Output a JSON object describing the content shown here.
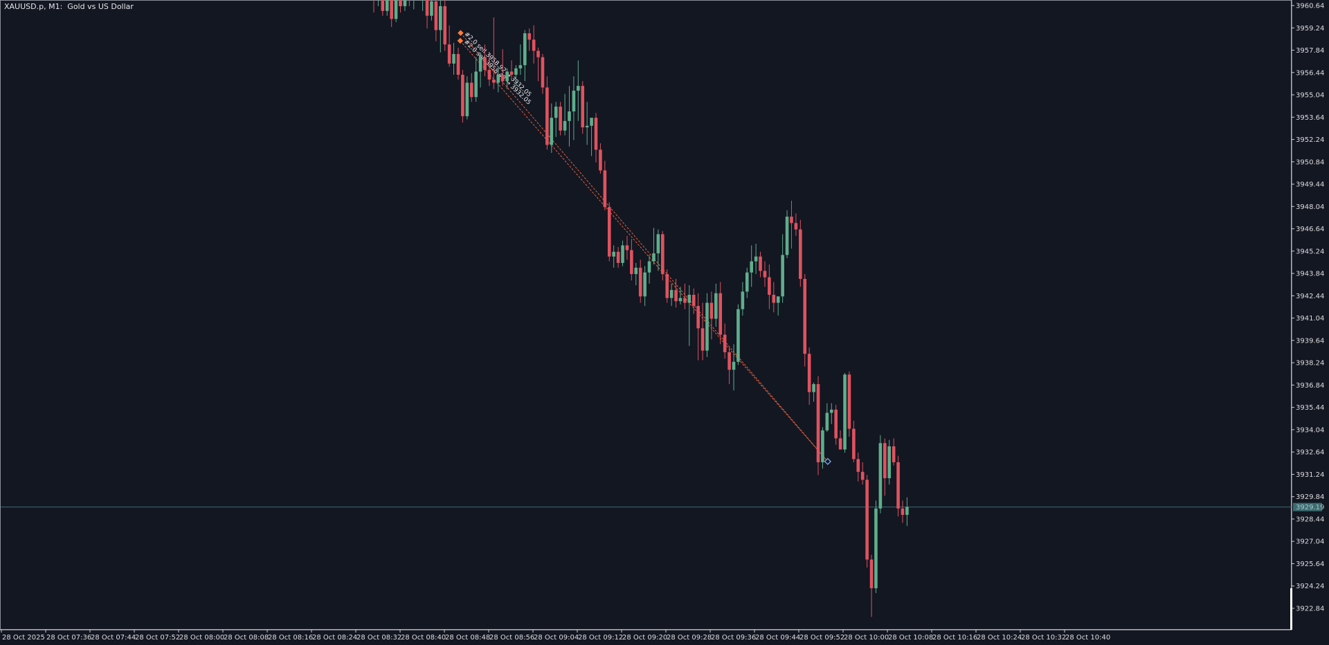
{
  "header": {
    "symbol": "XAUUSD.p, M1:",
    "description": "Gold vs US Dollar"
  },
  "price_axis": {
    "labels": [
      "3960.64",
      "3959.24",
      "3957.84",
      "3956.44",
      "3955.04",
      "3953.64",
      "3952.24",
      "3950.84",
      "3949.44",
      "3948.04",
      "3946.64",
      "3945.24",
      "3943.84",
      "3942.44",
      "3941.04",
      "3939.64",
      "3938.24",
      "3936.84",
      "3935.44",
      "3934.04",
      "3932.64",
      "3931.24",
      "3929.84",
      "3928.44",
      "3927.04",
      "3925.64",
      "3924.24",
      "3922.84"
    ],
    "current_price_label": "3929.19"
  },
  "time_axis": {
    "labels": [
      "28 Oct 2025",
      "28 Oct 07:36",
      "28 Oct 07:44",
      "28 Oct 07:52",
      "28 Oct 08:00",
      "28 Oct 08:08",
      "28 Oct 08:16",
      "28 Oct 08:24",
      "28 Oct 08:32",
      "28 Oct 08:40",
      "28 Oct 08:48",
      "28 Oct 08:56",
      "28 Oct 09:04",
      "28 Oct 09:12",
      "28 Oct 09:20",
      "28 Oct 09:28",
      "28 Oct 09:36",
      "28 Oct 09:44",
      "28 Oct 09:52",
      "28 Oct 10:00",
      "28 Oct 10:08",
      "28 Oct 10:16",
      "28 Oct 10:24",
      "28 Oct 10:32",
      "28 Oct 10:40"
    ]
  },
  "trade_lines": {
    "labels": [
      "#2.0 sell 3958.92 → 3932.05",
      "#2.0 sell 3958.43 → 3932.05"
    ]
  },
  "colors": {
    "background": "#131722",
    "bull": "#5fae8c",
    "bear": "#e0525f",
    "axis_text": "#dddddd",
    "current_price_line": "#3b6b6f",
    "trade_line": "#e8603c"
  },
  "chart_data": {
    "type": "candlestick",
    "title": "XAUUSD.p, M1: Gold vs US Dollar",
    "ylim": [
      3921.6,
      3961.2
    ],
    "current_price": 3929.19,
    "candles": [
      {
        "o": 3961.5,
        "h": 3962.0,
        "l": 3960.2,
        "c": 3961.0
      },
      {
        "o": 3961.2,
        "h": 3962.0,
        "l": 3960.6,
        "c": 3961.8
      },
      {
        "o": 3961.8,
        "h": 3962.0,
        "l": 3960.0,
        "c": 3960.3
      },
      {
        "o": 3960.3,
        "h": 3961.6,
        "l": 3960.0,
        "c": 3961.2
      },
      {
        "o": 3961.2,
        "h": 3962.0,
        "l": 3959.3,
        "c": 3959.8
      },
      {
        "o": 3959.8,
        "h": 3961.5,
        "l": 3959.6,
        "c": 3961.2
      },
      {
        "o": 3961.2,
        "h": 3961.5,
        "l": 3960.2,
        "c": 3960.6
      },
      {
        "o": 3960.6,
        "h": 3961.8,
        "l": 3960.3,
        "c": 3961.4
      },
      {
        "o": 3961.4,
        "h": 3961.9,
        "l": 3960.6,
        "c": 3961.0
      },
      {
        "o": 3961.0,
        "h": 3961.8,
        "l": 3960.4,
        "c": 3961.6
      },
      {
        "o": 3961.6,
        "h": 3962.0,
        "l": 3961.0,
        "c": 3961.2
      },
      {
        "o": 3961.2,
        "h": 3961.8,
        "l": 3960.3,
        "c": 3961.4
      },
      {
        "o": 3961.4,
        "h": 3962.0,
        "l": 3959.2,
        "c": 3960.0
      },
      {
        "o": 3960.0,
        "h": 3961.2,
        "l": 3959.7,
        "c": 3960.9
      },
      {
        "o": 3960.9,
        "h": 3961.3,
        "l": 3958.4,
        "c": 3959.1
      },
      {
        "o": 3959.1,
        "h": 3961.1,
        "l": 3957.7,
        "c": 3960.6
      },
      {
        "o": 3960.6,
        "h": 3961.0,
        "l": 3957.8,
        "c": 3958.2
      },
      {
        "o": 3958.2,
        "h": 3959.4,
        "l": 3956.8,
        "c": 3957.0
      },
      {
        "o": 3957.0,
        "h": 3958.3,
        "l": 3956.3,
        "c": 3957.6
      },
      {
        "o": 3957.6,
        "h": 3958.0,
        "l": 3956.0,
        "c": 3956.3
      },
      {
        "o": 3956.3,
        "h": 3956.6,
        "l": 3953.3,
        "c": 3953.7
      },
      {
        "o": 3953.7,
        "h": 3956.2,
        "l": 3953.5,
        "c": 3955.8
      },
      {
        "o": 3955.8,
        "h": 3956.4,
        "l": 3954.6,
        "c": 3954.9
      },
      {
        "o": 3954.9,
        "h": 3957.4,
        "l": 3954.6,
        "c": 3956.5
      },
      {
        "o": 3956.5,
        "h": 3957.7,
        "l": 3955.5,
        "c": 3957.4
      },
      {
        "o": 3957.4,
        "h": 3958.2,
        "l": 3956.2,
        "c": 3956.6
      },
      {
        "o": 3956.6,
        "h": 3957.7,
        "l": 3955.6,
        "c": 3956.0
      },
      {
        "o": 3956.0,
        "h": 3959.9,
        "l": 3955.4,
        "c": 3955.8
      },
      {
        "o": 3955.8,
        "h": 3956.8,
        "l": 3955.2,
        "c": 3956.3
      },
      {
        "o": 3956.3,
        "h": 3957.9,
        "l": 3955.6,
        "c": 3955.9
      },
      {
        "o": 3955.9,
        "h": 3956.7,
        "l": 3955.4,
        "c": 3956.5
      },
      {
        "o": 3956.5,
        "h": 3957.2,
        "l": 3955.9,
        "c": 3956.3
      },
      {
        "o": 3956.3,
        "h": 3956.9,
        "l": 3955.6,
        "c": 3956.7
      },
      {
        "o": 3956.7,
        "h": 3958.2,
        "l": 3956.3,
        "c": 3956.9
      },
      {
        "o": 3956.9,
        "h": 3959.1,
        "l": 3955.9,
        "c": 3958.9
      },
      {
        "o": 3958.9,
        "h": 3959.2,
        "l": 3957.8,
        "c": 3958.5
      },
      {
        "o": 3958.5,
        "h": 3959.4,
        "l": 3957.0,
        "c": 3957.8
      },
      {
        "o": 3957.8,
        "h": 3958.0,
        "l": 3955.9,
        "c": 3957.4
      },
      {
        "o": 3957.4,
        "h": 3957.6,
        "l": 3955.1,
        "c": 3955.5
      },
      {
        "o": 3955.5,
        "h": 3956.2,
        "l": 3951.6,
        "c": 3951.9
      },
      {
        "o": 3951.9,
        "h": 3954.5,
        "l": 3951.4,
        "c": 3953.6
      },
      {
        "o": 3953.6,
        "h": 3954.6,
        "l": 3952.4,
        "c": 3954.3
      },
      {
        "o": 3954.3,
        "h": 3954.6,
        "l": 3952.5,
        "c": 3952.8
      },
      {
        "o": 3952.8,
        "h": 3955.1,
        "l": 3952.5,
        "c": 3953.4
      },
      {
        "o": 3953.4,
        "h": 3955.6,
        "l": 3951.8,
        "c": 3954.0
      },
      {
        "o": 3954.0,
        "h": 3956.2,
        "l": 3952.2,
        "c": 3955.3
      },
      {
        "o": 3955.3,
        "h": 3957.2,
        "l": 3953.4,
        "c": 3955.6
      },
      {
        "o": 3955.6,
        "h": 3955.9,
        "l": 3952.6,
        "c": 3953.0
      },
      {
        "o": 3953.0,
        "h": 3954.6,
        "l": 3951.9,
        "c": 3953.1
      },
      {
        "o": 3953.1,
        "h": 3953.6,
        "l": 3951.2,
        "c": 3953.6
      },
      {
        "o": 3953.6,
        "h": 3953.9,
        "l": 3950.8,
        "c": 3951.6
      },
      {
        "o": 3951.6,
        "h": 3952.0,
        "l": 3950.1,
        "c": 3950.3
      },
      {
        "o": 3950.3,
        "h": 3950.9,
        "l": 3947.8,
        "c": 3948.0
      },
      {
        "o": 3948.0,
        "h": 3948.3,
        "l": 3944.6,
        "c": 3944.9
      },
      {
        "o": 3944.9,
        "h": 3945.6,
        "l": 3944.2,
        "c": 3945.2
      },
      {
        "o": 3945.2,
        "h": 3945.5,
        "l": 3944.2,
        "c": 3944.5
      },
      {
        "o": 3944.5,
        "h": 3945.9,
        "l": 3944.3,
        "c": 3945.6
      },
      {
        "o": 3945.6,
        "h": 3946.2,
        "l": 3944.7,
        "c": 3945.3
      },
      {
        "o": 3945.3,
        "h": 3946.0,
        "l": 3943.4,
        "c": 3943.8
      },
      {
        "o": 3943.8,
        "h": 3944.5,
        "l": 3943.1,
        "c": 3944.2
      },
      {
        "o": 3944.2,
        "h": 3944.7,
        "l": 3942.0,
        "c": 3942.4
      },
      {
        "o": 3942.4,
        "h": 3944.3,
        "l": 3941.8,
        "c": 3943.9
      },
      {
        "o": 3943.9,
        "h": 3945.0,
        "l": 3943.2,
        "c": 3944.6
      },
      {
        "o": 3944.6,
        "h": 3946.7,
        "l": 3944.4,
        "c": 3945.1
      },
      {
        "o": 3945.1,
        "h": 3946.6,
        "l": 3944.0,
        "c": 3946.3
      },
      {
        "o": 3946.3,
        "h": 3946.5,
        "l": 3943.4,
        "c": 3943.8
      },
      {
        "o": 3943.8,
        "h": 3944.1,
        "l": 3942.0,
        "c": 3942.3
      },
      {
        "o": 3942.3,
        "h": 3943.2,
        "l": 3941.8,
        "c": 3942.8
      },
      {
        "o": 3942.8,
        "h": 3943.5,
        "l": 3941.7,
        "c": 3942.1
      },
      {
        "o": 3942.1,
        "h": 3943.0,
        "l": 3941.9,
        "c": 3942.3
      },
      {
        "o": 3942.3,
        "h": 3943.2,
        "l": 3941.6,
        "c": 3942.0
      },
      {
        "o": 3942.0,
        "h": 3943.1,
        "l": 3939.3,
        "c": 3942.5
      },
      {
        "o": 3942.5,
        "h": 3942.9,
        "l": 3941.3,
        "c": 3941.8
      },
      {
        "o": 3941.8,
        "h": 3942.6,
        "l": 3938.4,
        "c": 3940.4
      },
      {
        "o": 3940.4,
        "h": 3942.0,
        "l": 3938.4,
        "c": 3939.0
      },
      {
        "o": 3939.0,
        "h": 3942.6,
        "l": 3938.6,
        "c": 3942.0
      },
      {
        "o": 3942.0,
        "h": 3942.7,
        "l": 3939.7,
        "c": 3941.0
      },
      {
        "o": 3941.0,
        "h": 3943.2,
        "l": 3940.5,
        "c": 3942.6
      },
      {
        "o": 3942.6,
        "h": 3943.3,
        "l": 3939.4,
        "c": 3940.0
      },
      {
        "o": 3940.0,
        "h": 3940.7,
        "l": 3938.5,
        "c": 3938.9
      },
      {
        "o": 3938.9,
        "h": 3939.2,
        "l": 3936.9,
        "c": 3937.8
      },
      {
        "o": 3937.8,
        "h": 3939.4,
        "l": 3936.5,
        "c": 3938.3
      },
      {
        "o": 3938.3,
        "h": 3941.9,
        "l": 3938.1,
        "c": 3941.6
      },
      {
        "o": 3941.6,
        "h": 3943.3,
        "l": 3941.2,
        "c": 3942.7
      },
      {
        "o": 3942.7,
        "h": 3944.2,
        "l": 3942.3,
        "c": 3943.9
      },
      {
        "o": 3943.9,
        "h": 3945.6,
        "l": 3943.0,
        "c": 3944.6
      },
      {
        "o": 3944.6,
        "h": 3945.7,
        "l": 3943.8,
        "c": 3944.9
      },
      {
        "o": 3944.9,
        "h": 3945.2,
        "l": 3943.6,
        "c": 3944.0
      },
      {
        "o": 3944.0,
        "h": 3944.6,
        "l": 3943.0,
        "c": 3943.6
      },
      {
        "o": 3943.6,
        "h": 3944.4,
        "l": 3941.6,
        "c": 3942.5
      },
      {
        "o": 3942.5,
        "h": 3943.3,
        "l": 3941.4,
        "c": 3942.0
      },
      {
        "o": 3942.0,
        "h": 3942.4,
        "l": 3941.2,
        "c": 3942.4
      },
      {
        "o": 3942.4,
        "h": 3946.3,
        "l": 3942.0,
        "c": 3945.0
      },
      {
        "o": 3945.0,
        "h": 3947.8,
        "l": 3944.8,
        "c": 3947.4
      },
      {
        "o": 3947.4,
        "h": 3948.4,
        "l": 3945.4,
        "c": 3947.0
      },
      {
        "o": 3947.0,
        "h": 3947.6,
        "l": 3946.2,
        "c": 3946.6
      },
      {
        "o": 3946.6,
        "h": 3947.2,
        "l": 3943.0,
        "c": 3943.5
      },
      {
        "o": 3943.5,
        "h": 3943.8,
        "l": 3938.0,
        "c": 3938.8
      },
      {
        "o": 3938.8,
        "h": 3939.2,
        "l": 3935.6,
        "c": 3936.4
      },
      {
        "o": 3936.4,
        "h": 3937.0,
        "l": 3935.8,
        "c": 3936.9
      },
      {
        "o": 3936.9,
        "h": 3937.4,
        "l": 3931.2,
        "c": 3932.0
      },
      {
        "o": 3932.0,
        "h": 3934.2,
        "l": 3931.6,
        "c": 3934.0
      },
      {
        "o": 3934.0,
        "h": 3935.7,
        "l": 3933.9,
        "c": 3935.1
      },
      {
        "o": 3935.1,
        "h": 3935.7,
        "l": 3934.4,
        "c": 3935.3
      },
      {
        "o": 3935.3,
        "h": 3935.6,
        "l": 3933.1,
        "c": 3933.5
      },
      {
        "o": 3933.5,
        "h": 3934.0,
        "l": 3932.9,
        "c": 3932.8
      },
      {
        "o": 3932.8,
        "h": 3937.6,
        "l": 3932.6,
        "c": 3937.5
      },
      {
        "o": 3937.5,
        "h": 3937.7,
        "l": 3933.6,
        "c": 3934.1
      },
      {
        "o": 3934.1,
        "h": 3934.6,
        "l": 3932.0,
        "c": 3932.2
      },
      {
        "o": 3932.2,
        "h": 3932.6,
        "l": 3930.8,
        "c": 3931.4
      },
      {
        "o": 3931.4,
        "h": 3932.0,
        "l": 3930.6,
        "c": 3930.9
      },
      {
        "o": 3930.9,
        "h": 3931.2,
        "l": 3925.4,
        "c": 3925.9
      },
      {
        "o": 3925.9,
        "h": 3926.2,
        "l": 3922.3,
        "c": 3924.1
      },
      {
        "o": 3924.1,
        "h": 3929.6,
        "l": 3923.8,
        "c": 3929.1
      },
      {
        "o": 3929.1,
        "h": 3933.7,
        "l": 3928.8,
        "c": 3933.2
      },
      {
        "o": 3933.2,
        "h": 3933.5,
        "l": 3929.9,
        "c": 3931.0
      },
      {
        "o": 3931.0,
        "h": 3933.4,
        "l": 3930.6,
        "c": 3933.0
      },
      {
        "o": 3933.0,
        "h": 3933.5,
        "l": 3931.8,
        "c": 3932.0
      },
      {
        "o": 3932.0,
        "h": 3932.4,
        "l": 3928.6,
        "c": 3929.1
      },
      {
        "o": 3929.1,
        "h": 3929.6,
        "l": 3928.2,
        "c": 3928.7
      },
      {
        "o": 3928.7,
        "h": 3929.8,
        "l": 3928.0,
        "c": 3929.2
      }
    ],
    "trades": [
      {
        "entry": 3958.92,
        "exit": 3932.05
      },
      {
        "entry": 3958.43,
        "exit": 3932.05
      }
    ]
  }
}
